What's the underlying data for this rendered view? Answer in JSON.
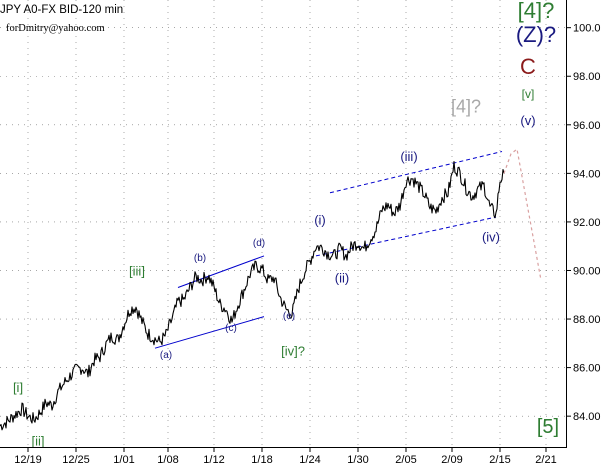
{
  "header": {
    "symbol": "JPY A0-FX BID-120 min",
    "author": "forDmitry@yahoo.com"
  },
  "colors": {
    "price": "#000000",
    "axis": "#000000",
    "grid_dots": "#000000",
    "channel": "#0000cc",
    "label_green": "#2e7d32",
    "label_navy": "#1a1a80",
    "label_gray": "#a8a8a8",
    "label_maroon": "#8b1a1a",
    "forecast": "#d9a0a0"
  },
  "chart_data": {
    "type": "line",
    "title": "JPY A0-FX BID-120 min",
    "xlabel": "",
    "ylabel": "",
    "ylim": [
      82.5,
      101.3
    ],
    "y_ticks": [
      "84.00",
      "86.00",
      "88.00",
      "90.00",
      "92.00",
      "94.00",
      "96.00",
      "98.00",
      "100.0"
    ],
    "x_ticks": [
      "12/19",
      "12/25",
      "1/01",
      "1/08",
      "1/12",
      "1/18",
      "1/24",
      "1/30",
      "2/05",
      "2/09",
      "2/15",
      "2/21"
    ],
    "series": [
      {
        "values": [
          [
            0,
            83.6
          ],
          [
            8,
            83.8
          ],
          [
            16,
            84.1
          ],
          [
            22,
            84.3
          ],
          [
            28,
            84.0
          ],
          [
            34,
            83.85
          ],
          [
            40,
            84.15
          ],
          [
            46,
            84.55
          ],
          [
            52,
            84.45
          ],
          [
            58,
            85.0
          ],
          [
            64,
            85.35
          ],
          [
            70,
            85.65
          ],
          [
            76,
            85.9
          ],
          [
            82,
            86.0
          ],
          [
            88,
            85.75
          ],
          [
            94,
            86.3
          ],
          [
            100,
            86.45
          ],
          [
            106,
            86.95
          ],
          [
            112,
            87.3
          ],
          [
            118,
            87.15
          ],
          [
            124,
            87.8
          ],
          [
            130,
            88.4
          ],
          [
            136,
            88.5
          ],
          [
            142,
            87.9
          ],
          [
            148,
            87.4
          ],
          [
            154,
            87.2
          ],
          [
            160,
            87.05
          ],
          [
            166,
            87.35
          ],
          [
            172,
            88.0
          ],
          [
            178,
            88.7
          ],
          [
            184,
            88.8
          ],
          [
            190,
            89.3
          ],
          [
            196,
            89.75
          ],
          [
            202,
            89.6
          ],
          [
            208,
            89.8
          ],
          [
            214,
            89.3
          ],
          [
            220,
            88.6
          ],
          [
            226,
            88.4
          ],
          [
            232,
            87.9
          ],
          [
            238,
            88.6
          ],
          [
            244,
            89.2
          ],
          [
            250,
            89.85
          ],
          [
            256,
            90.2
          ],
          [
            262,
            90.05
          ],
          [
            268,
            89.6
          ],
          [
            274,
            89.7
          ],
          [
            280,
            88.9
          ],
          [
            286,
            88.4
          ],
          [
            292,
            88.2
          ],
          [
            298,
            89.2
          ],
          [
            304,
            89.9
          ],
          [
            310,
            90.4
          ],
          [
            316,
            91.0
          ],
          [
            322,
            90.95
          ],
          [
            328,
            90.7
          ],
          [
            334,
            90.6
          ],
          [
            340,
            90.9
          ],
          [
            346,
            90.6
          ],
          [
            352,
            91.0
          ],
          [
            358,
            91.15
          ],
          [
            364,
            90.9
          ],
          [
            370,
            91.3
          ],
          [
            376,
            91.7
          ],
          [
            382,
            92.5
          ],
          [
            388,
            92.7
          ],
          [
            394,
            92.35
          ],
          [
            400,
            92.7
          ],
          [
            406,
            93.7
          ],
          [
            412,
            93.8
          ],
          [
            418,
            93.5
          ],
          [
            424,
            93.15
          ],
          [
            430,
            92.6
          ],
          [
            436,
            92.45
          ],
          [
            442,
            93.0
          ],
          [
            448,
            93.2
          ],
          [
            454,
            94.3
          ],
          [
            460,
            94.0
          ],
          [
            466,
            93.4
          ],
          [
            472,
            93.05
          ],
          [
            478,
            93.35
          ],
          [
            484,
            93.5
          ],
          [
            490,
            92.6
          ],
          [
            496,
            92.3
          ],
          [
            500,
            93.7
          ],
          [
            504,
            94.0
          ]
        ]
      }
    ],
    "forecast": [
      [
        504,
        94.0
      ],
      [
        511,
        94.8
      ],
      [
        517,
        95.0
      ],
      [
        541,
        89.6
      ]
    ],
    "channels": [
      {
        "from": [
          155,
          86.8
        ],
        "to": [
          264,
          88.1
        ]
      },
      {
        "from": [
          178,
          89.3
        ],
        "to": [
          264,
          90.6
        ]
      },
      {
        "from": [
          316,
          90.6
        ],
        "to": [
          496,
          92.2
        ]
      },
      {
        "from": [
          330,
          93.2
        ],
        "to": [
          502,
          94.9
        ]
      }
    ],
    "annotations": [
      {
        "text": "[i]",
        "color": "green",
        "at": [
          18,
          85.0
        ]
      },
      {
        "text": "[ii]",
        "color": "green",
        "at": [
          38,
          82.8
        ]
      },
      {
        "text": "[iii]",
        "color": "green",
        "at": [
          137,
          89.8
        ]
      },
      {
        "text": "(a)",
        "color": "navy",
        "at": [
          166,
          86.4
        ]
      },
      {
        "text": "(b)",
        "color": "navy",
        "at": [
          200,
          90.4
        ]
      },
      {
        "text": "(c)",
        "color": "navy",
        "at": [
          231,
          87.5
        ]
      },
      {
        "text": "(d)",
        "color": "navy",
        "at": [
          259,
          91.0
        ]
      },
      {
        "text": "(e)",
        "color": "navy",
        "at": [
          289,
          88.0
        ]
      },
      {
        "text": "[iv]?",
        "color": "green",
        "at": [
          293,
          86.5
        ]
      },
      {
        "text": "(i)",
        "color": "navy",
        "at": [
          320,
          91.9
        ]
      },
      {
        "text": "(ii)",
        "color": "navy",
        "at": [
          342,
          89.5
        ]
      },
      {
        "text": "(iii)",
        "color": "navy",
        "at": [
          409,
          94.5
        ]
      },
      {
        "text": "(iv)",
        "color": "navy",
        "at": [
          491,
          91.2
        ]
      },
      {
        "text": "[4]?",
        "color": "gray",
        "at": [
          466,
          96.5
        ]
      },
      {
        "text": "(v)",
        "color": "navy",
        "at": [
          528,
          96.0
        ]
      },
      {
        "text": "[v]",
        "color": "green",
        "at": [
          528,
          97.1
        ]
      },
      {
        "text": "C",
        "color": "maroon",
        "at": [
          528,
          98.1
        ]
      },
      {
        "text": "(Z)?",
        "color": "navy",
        "at": [
          536,
          99.4
        ]
      },
      {
        "text": "[4]?",
        "color": "green",
        "at": [
          536,
          100.4
        ]
      },
      {
        "text": "[5]",
        "color": "green",
        "at": [
          548,
          83.3
        ]
      }
    ],
    "grid": true,
    "legend": "none"
  }
}
